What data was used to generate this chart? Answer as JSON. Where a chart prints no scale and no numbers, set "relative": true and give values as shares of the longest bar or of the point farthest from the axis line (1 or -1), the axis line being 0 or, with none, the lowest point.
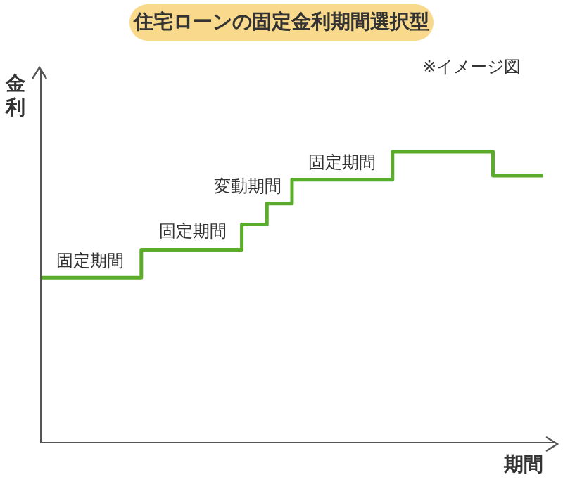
{
  "chart_data": {
    "type": "step",
    "title": "住宅ローンの固定金利期間選択型",
    "xlabel": "期間",
    "ylabel": "金利",
    "relative": true,
    "categories": [
      null,
      null,
      null,
      null,
      null,
      null,
      null,
      null,
      null,
      null,
      null,
      null,
      null,
      null,
      null,
      null,
      null,
      null,
      null,
      null,
      null
    ],
    "series": [
      {
        "color": "#5aac2a",
        "values": [
          0.567,
          0.567,
          0.567,
          0.567,
          0.663,
          0.663,
          0.663,
          0.663,
          0.75,
          0.822,
          0.904,
          0.904,
          0.904,
          0.904,
          1,
          1,
          1,
          1,
          0.918,
          0.918,
          0.918
        ]
      }
    ],
    "annotations": [
      "固定期間",
      "固定期間",
      "変動期間",
      "固定期間",
      "※イメージ図"
    ]
  }
}
